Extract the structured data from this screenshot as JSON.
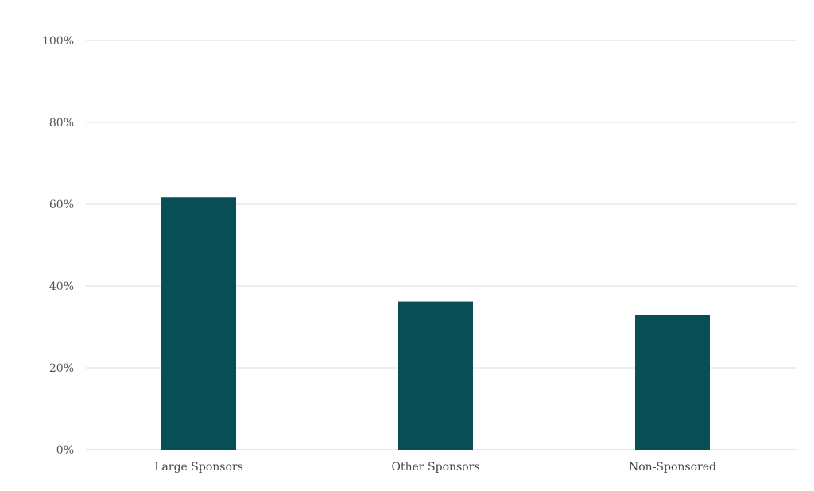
{
  "chart_data": {
    "type": "bar",
    "categories": [
      "Large Sponsors",
      "Other Sponsors",
      "Non-Sponsored"
    ],
    "values": [
      61.7,
      36.2,
      33.0
    ],
    "ylim": [
      0,
      100
    ],
    "yticks": [
      0,
      20,
      40,
      60,
      80,
      100
    ],
    "ytick_suffix": "%",
    "grid": true,
    "legend": "none",
    "colors": {
      "bar": "#084f55",
      "grid": "#dcdcdc",
      "text": "#555555"
    }
  }
}
